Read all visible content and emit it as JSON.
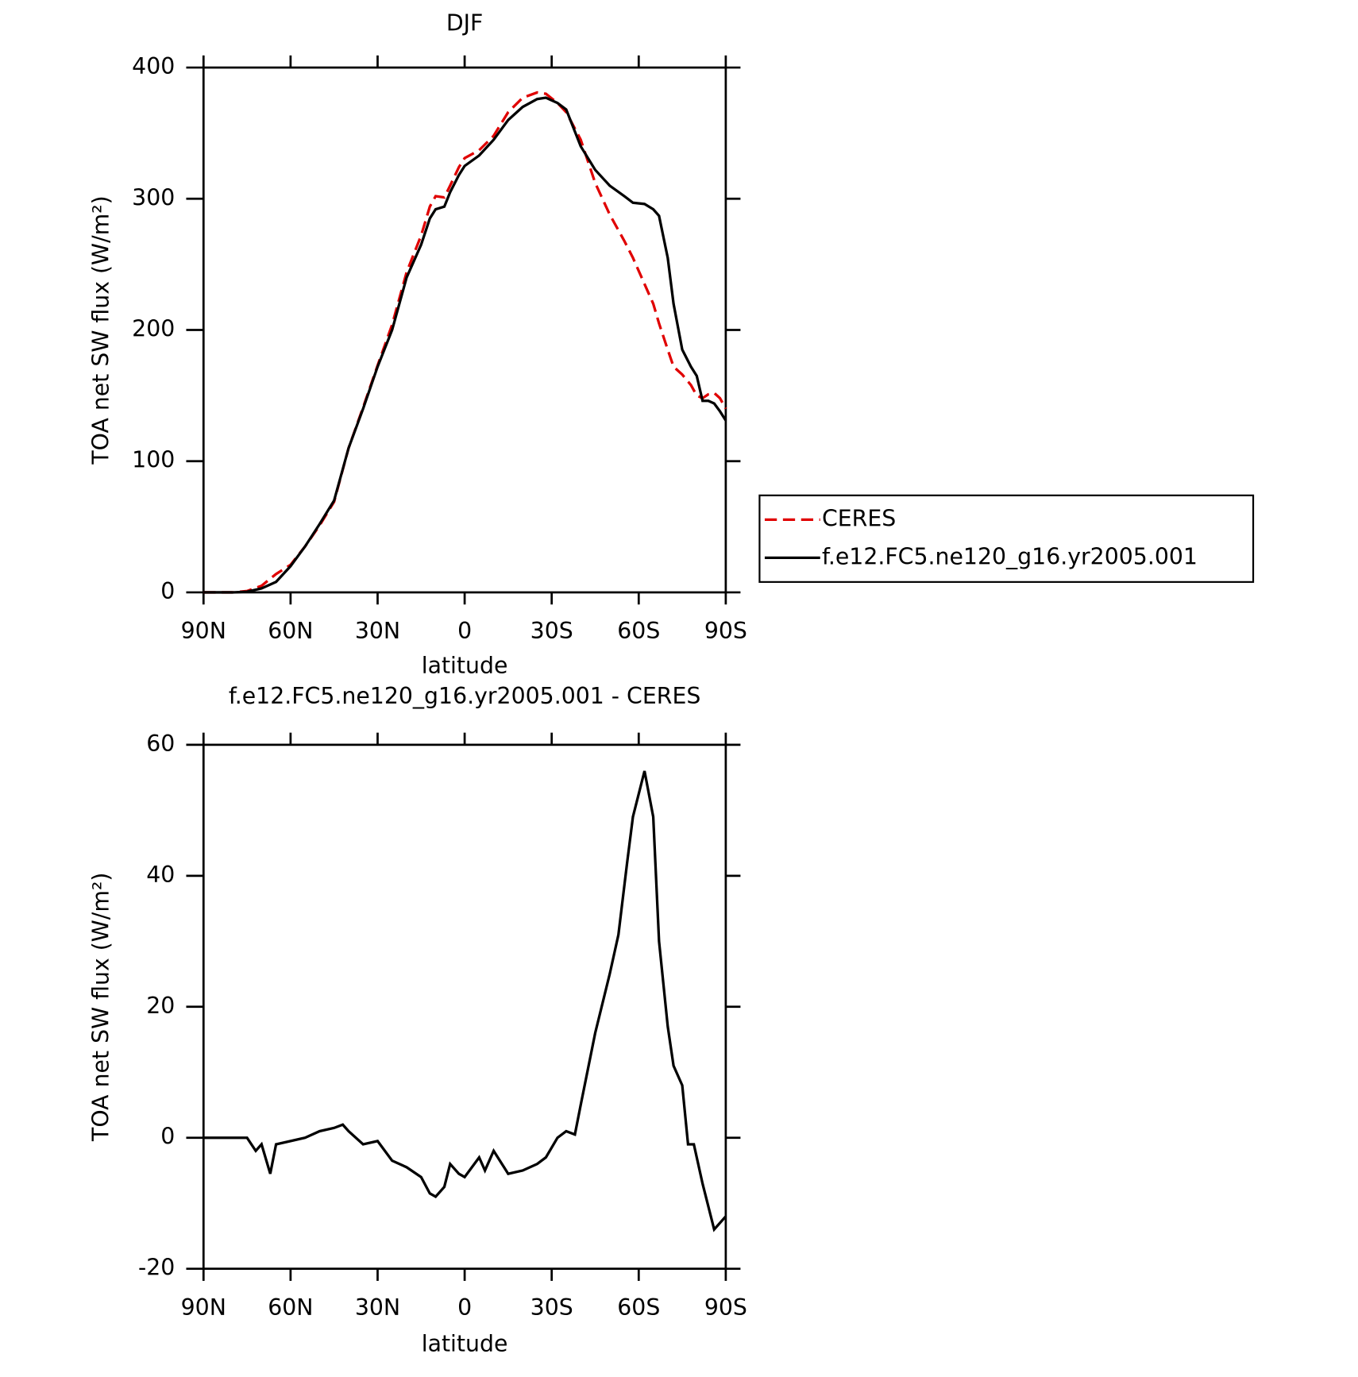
{
  "chart_data": [
    {
      "type": "line",
      "title": "DJF",
      "xlabel": "latitude",
      "ylabel": "TOA net SW flux (W/m²)",
      "x": [
        90,
        85,
        80,
        75,
        70,
        65,
        60,
        55,
        50,
        45,
        40,
        35,
        30,
        25,
        20,
        15,
        12,
        10,
        7,
        5,
        2,
        0,
        -5,
        -10,
        -15,
        -20,
        -25,
        -28,
        -32,
        -35,
        -40,
        -45,
        -50,
        -55,
        -58,
        -62,
        -65,
        -67,
        -70,
        -72,
        -75,
        -78,
        -80,
        -82,
        -84,
        -86,
        -88,
        -90
      ],
      "series": [
        {
          "name": "CERES",
          "color": "#e00000",
          "dash": true,
          "values": [
            0,
            0,
            0,
            1,
            5,
            14,
            21,
            35,
            51,
            69,
            110,
            141,
            173,
            204,
            244,
            272,
            294,
            302,
            301,
            310,
            324,
            331,
            337,
            348,
            366,
            377,
            381,
            380,
            373,
            366,
            345,
            312,
            288,
            268,
            255,
            235,
            220,
            205,
            185,
            172,
            166,
            158,
            150,
            148,
            151,
            152,
            148,
            140
          ]
        },
        {
          "name": "f.e12.FC5.ne120_g16.yr2005.001",
          "color": "#000000",
          "dash": false,
          "values": [
            0,
            0,
            0,
            0.5,
            3,
            8,
            20,
            35,
            52,
            70,
            110,
            140,
            172,
            200,
            240,
            265,
            285,
            292,
            294,
            305,
            318,
            325,
            333,
            345,
            360,
            370,
            376,
            377,
            373,
            368,
            340,
            322,
            310,
            302,
            297,
            296,
            292,
            287,
            255,
            220,
            185,
            172,
            165,
            146,
            146,
            144,
            138,
            131
          ]
        }
      ],
      "xlim": [
        90,
        -90
      ],
      "xticks": [
        {
          "value": 90,
          "label": "90N"
        },
        {
          "value": 60,
          "label": "60N"
        },
        {
          "value": 30,
          "label": "30N"
        },
        0,
        {
          "value": -30,
          "label": "30S"
        },
        {
          "value": -60,
          "label": "60S"
        },
        {
          "value": -90,
          "label": "90S"
        }
      ],
      "ylim": [
        0,
        400
      ],
      "yticks": [
        0,
        100,
        200,
        300,
        400
      ],
      "legend": "right"
    },
    {
      "type": "line",
      "title": "f.e12.FC5.ne120_g16.yr2005.001 - CERES",
      "xlabel": "latitude",
      "ylabel": "TOA net SW flux (W/m²)",
      "x": [
        90,
        85,
        80,
        75,
        72,
        70,
        67,
        65,
        60,
        55,
        50,
        45,
        42,
        40,
        35,
        30,
        25,
        20,
        15,
        12,
        10,
        7,
        5,
        2,
        0,
        -5,
        -7,
        -10,
        -15,
        -20,
        -25,
        -28,
        -32,
        -35,
        -38,
        -40,
        -45,
        -50,
        -53,
        -56,
        -58,
        -62,
        -65,
        -67,
        -70,
        -72,
        -75,
        -77,
        -79,
        -82,
        -86,
        -90
      ],
      "series": [
        {
          "color": "#000000",
          "values": [
            0,
            0,
            0,
            0,
            -2,
            -1,
            -5.5,
            -1,
            -0.5,
            0,
            1,
            1.5,
            2,
            1,
            -1,
            -0.5,
            -3.5,
            -4.5,
            -6,
            -8.5,
            -9,
            -7.5,
            -4,
            -5.5,
            -6,
            -3,
            -5,
            -2,
            -5.5,
            -5,
            -4,
            -3,
            0,
            1,
            0.5,
            5,
            16,
            25,
            31,
            42,
            49,
            56,
            49,
            30,
            17,
            11,
            8,
            -1,
            -1,
            -7,
            -14,
            -12
          ]
        }
      ],
      "xlim": [
        90,
        -90
      ],
      "xticks": [
        {
          "value": 90,
          "label": "90N"
        },
        {
          "value": 60,
          "label": "60N"
        },
        {
          "value": 30,
          "label": "30N"
        },
        0,
        {
          "value": -30,
          "label": "30S"
        },
        {
          "value": -60,
          "label": "60S"
        },
        {
          "value": -90,
          "label": "90S"
        }
      ],
      "ylim": [
        -20,
        60
      ],
      "yticks": [
        -20,
        0,
        20,
        40,
        60
      ]
    }
  ]
}
